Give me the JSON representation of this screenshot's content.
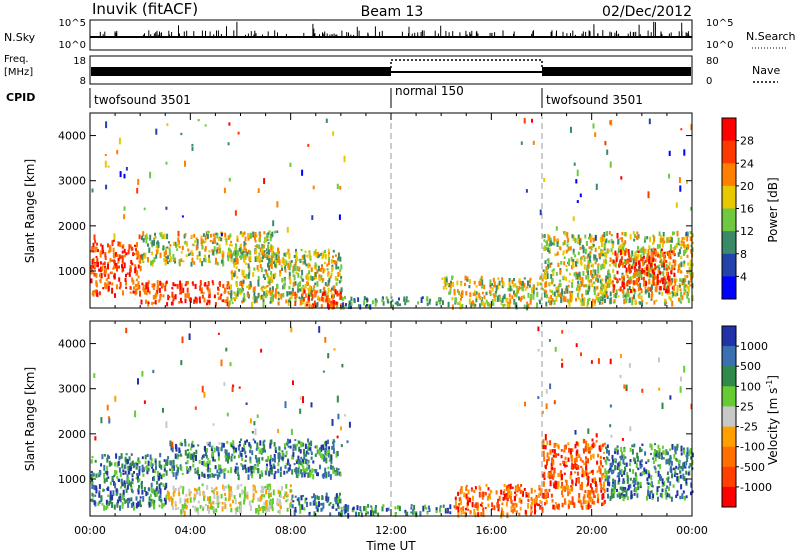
{
  "header": {
    "station": "Inuvik (fitACF)",
    "beam": "Beam 13",
    "date": "02/Dec/2012"
  },
  "top_panels": {
    "nsky_label": "N.Sky",
    "nsky_ticks": [
      "10^5",
      "10^0"
    ],
    "nsearch_label": "N.Search",
    "nsearch_ticks": [
      "10^5",
      "10^0"
    ],
    "freq_label_1": "Freq.",
    "freq_label_2": "[MHz]",
    "freq_ticks": [
      "18",
      "8"
    ],
    "nave_label": "Nave",
    "nave_ticks": [
      "80",
      "0"
    ],
    "cpid_label": "CPID",
    "cpid_segments": [
      {
        "start": 0,
        "end": 12,
        "label": "twofsound 3501"
      },
      {
        "start": 12,
        "end": 18,
        "label": "normal 150"
      },
      {
        "start": 18,
        "end": 24,
        "label": "twofsound 3501"
      }
    ]
  },
  "chart_data": [
    {
      "type": "heatmap",
      "title": "",
      "xlabel": "",
      "ylabel": "Slant Range [km]",
      "x_unit": "hours UT",
      "xlim": [
        0,
        24
      ],
      "ylim": [
        180,
        4500
      ],
      "yticks": [
        "1000",
        "2000",
        "3000",
        "4000"
      ],
      "colorbar": {
        "label": "Power [dB]",
        "ticks": [
          "28",
          "24",
          "20",
          "16",
          "12",
          "8",
          "4"
        ],
        "colors": [
          "#ff0000",
          "#ff3a00",
          "#ff8000",
          "#e8c800",
          "#70c840",
          "#3a8a6a",
          "#2244aa",
          "#0000ff"
        ]
      },
      "scatter_regions": [
        {
          "t0": 0.0,
          "t1": 2.0,
          "r0": 500,
          "r1": 1700,
          "level": "high"
        },
        {
          "t0": 2.0,
          "t1": 5.5,
          "r0": 300,
          "r1": 800,
          "level": "high"
        },
        {
          "t0": 2.0,
          "t1": 7.5,
          "r0": 1200,
          "r1": 1900,
          "level": "mid"
        },
        {
          "t0": 5.5,
          "t1": 10.0,
          "r0": 300,
          "r1": 1500,
          "level": "mid"
        },
        {
          "t0": 8.0,
          "t1": 10.0,
          "r0": 250,
          "r1": 600,
          "level": "high"
        },
        {
          "t0": 10.0,
          "t1": 14.0,
          "r0": 250,
          "r1": 450,
          "level": "low"
        },
        {
          "t0": 14.0,
          "t1": 18.0,
          "r0": 250,
          "r1": 900,
          "level": "mid"
        },
        {
          "t0": 18.0,
          "t1": 24.0,
          "r0": 300,
          "r1": 1900,
          "level": "mid"
        },
        {
          "t0": 20.8,
          "t1": 23.3,
          "r0": 600,
          "r1": 1500,
          "level": "high"
        }
      ]
    },
    {
      "type": "heatmap",
      "title": "",
      "xlabel": "Time UT",
      "ylabel": "Slant Range [km]",
      "x_unit": "hours UT",
      "xlim": [
        0,
        24
      ],
      "ylim": [
        180,
        4500
      ],
      "xticks": [
        "00:00",
        "04:00",
        "08:00",
        "12:00",
        "16:00",
        "20:00",
        "00:00"
      ],
      "yticks": [
        "1000",
        "2000",
        "3000",
        "4000"
      ],
      "colorbar": {
        "label": "Velocity [m s^-1]",
        "ticks": [
          "1000",
          "500",
          "100",
          "25",
          "-25",
          "-100",
          "-500",
          "-1000"
        ],
        "colors": [
          "#2233aa",
          "#3a70b0",
          "#2f8a4a",
          "#66cc33",
          "#c8c8c8",
          "#ffa000",
          "#ff7000",
          "#ff4000",
          "#ff0000"
        ]
      },
      "scatter_regions": [
        {
          "t0": 0.0,
          "t1": 3.0,
          "r0": 400,
          "r1": 1600,
          "level": "positive"
        },
        {
          "t0": 3.0,
          "t1": 10.0,
          "r0": 1100,
          "r1": 1900,
          "level": "positive"
        },
        {
          "t0": 3.0,
          "t1": 8.0,
          "r0": 300,
          "r1": 900,
          "level": "near-zero"
        },
        {
          "t0": 8.0,
          "t1": 10.0,
          "r0": 250,
          "r1": 700,
          "level": "positive"
        },
        {
          "t0": 10.0,
          "t1": 14.5,
          "r0": 250,
          "r1": 450,
          "level": "positive"
        },
        {
          "t0": 14.5,
          "t1": 18.0,
          "r0": 250,
          "r1": 900,
          "level": "negative"
        },
        {
          "t0": 18.0,
          "t1": 20.5,
          "r0": 400,
          "r1": 1900,
          "level": "negative"
        },
        {
          "t0": 20.5,
          "t1": 24.0,
          "r0": 600,
          "r1": 1800,
          "level": "positive"
        }
      ]
    }
  ]
}
